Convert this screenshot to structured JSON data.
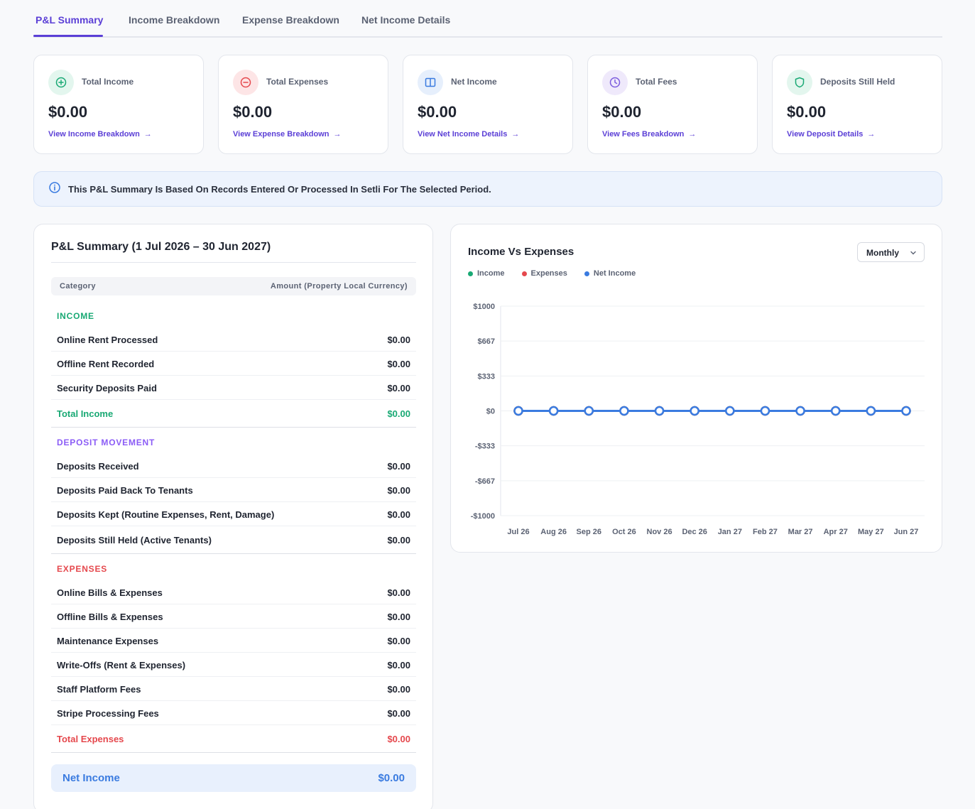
{
  "tabs": [
    {
      "label": "P&L Summary",
      "active": true
    },
    {
      "label": "Income Breakdown",
      "active": false
    },
    {
      "label": "Expense Breakdown",
      "active": false
    },
    {
      "label": "Net Income Details",
      "active": false
    }
  ],
  "cards": [
    {
      "label": "Total Income",
      "value": "$0.00",
      "link": "View Income Breakdown",
      "icon": "plus-circle-icon",
      "color": "#19a974"
    },
    {
      "label": "Total Expenses",
      "value": "$0.00",
      "link": "View Expense Breakdown",
      "icon": "minus-circle-icon",
      "color": "#e5484d"
    },
    {
      "label": "Net Income",
      "value": "$0.00",
      "link": "View Net Income Details",
      "icon": "columns-icon",
      "color": "#3a7be0"
    },
    {
      "label": "Total Fees",
      "value": "$0.00",
      "link": "View Fees Breakdown",
      "icon": "clock-icon",
      "color": "#7c5cde"
    },
    {
      "label": "Deposits Still Held",
      "value": "$0.00",
      "link": "View Deposit Details",
      "icon": "shield-icon",
      "color": "#19a974"
    }
  ],
  "info_banner": "This P&L Summary Is Based On Records Entered Or Processed In Setli For The Selected Period.",
  "summary": {
    "title": "P&L Summary (1 Jul 2026 – 30 Jun 2027)",
    "col_category": "Category",
    "col_amount": "Amount (Property Local Currency)",
    "income": {
      "label": "INCOME",
      "rows": [
        {
          "label": "Online Rent Processed",
          "amount": "$0.00"
        },
        {
          "label": "Offline Rent Recorded",
          "amount": "$0.00"
        },
        {
          "label": "Security Deposits Paid",
          "amount": "$0.00"
        }
      ],
      "total_label": "Total Income",
      "total_amount": "$0.00"
    },
    "deposit": {
      "label": "DEPOSIT MOVEMENT",
      "rows": [
        {
          "label": "Deposits Received",
          "amount": "$0.00"
        },
        {
          "label": "Deposits Paid Back To Tenants",
          "amount": "$0.00"
        },
        {
          "label": "Deposits Kept (Routine Expenses, Rent, Damage)",
          "amount": "$0.00"
        }
      ],
      "total_label": "Deposits Still Held (Active Tenants)",
      "total_amount": "$0.00"
    },
    "expenses": {
      "label": "EXPENSES",
      "rows": [
        {
          "label": "Online Bills & Expenses",
          "amount": "$0.00"
        },
        {
          "label": "Offline Bills & Expenses",
          "amount": "$0.00"
        },
        {
          "label": "Maintenance Expenses",
          "amount": "$0.00"
        },
        {
          "label": "Write-Offs (Rent & Expenses)",
          "amount": "$0.00"
        },
        {
          "label": "Staff Platform Fees",
          "amount": "$0.00"
        },
        {
          "label": "Stripe Processing Fees",
          "amount": "$0.00"
        }
      ],
      "total_label": "Total Expenses",
      "total_amount": "$0.00"
    },
    "net_label": "Net Income",
    "net_amount": "$0.00"
  },
  "colors": {
    "accent": "#5b3fd6",
    "income": "#19a974",
    "deposit": "#8b5cf6",
    "expense": "#e5484d",
    "net": "#3a7be0"
  },
  "chart": {
    "title": "Income Vs Expenses",
    "period_select": "Monthly"
  },
  "chart_data": {
    "type": "line",
    "x": [
      "Jul 26",
      "Aug 26",
      "Sep 26",
      "Oct 26",
      "Nov 26",
      "Dec 26",
      "Jan 27",
      "Feb 27",
      "Mar 27",
      "Apr 27",
      "May 27",
      "Jun 27"
    ],
    "series": [
      {
        "name": "Income",
        "color": "#19a974",
        "values": [
          0,
          0,
          0,
          0,
          0,
          0,
          0,
          0,
          0,
          0,
          0,
          0
        ]
      },
      {
        "name": "Expenses",
        "color": "#e5484d",
        "values": [
          0,
          0,
          0,
          0,
          0,
          0,
          0,
          0,
          0,
          0,
          0,
          0
        ]
      },
      {
        "name": "Net Income",
        "color": "#3a7be0",
        "values": [
          0,
          0,
          0,
          0,
          0,
          0,
          0,
          0,
          0,
          0,
          0,
          0
        ]
      }
    ],
    "yticks": [
      "$1000",
      "$667",
      "$333",
      "$0",
      "-$333",
      "-$667",
      "-$1000"
    ],
    "ylim": [
      -1000,
      1000
    ],
    "grid": true,
    "legend": "top-left"
  }
}
